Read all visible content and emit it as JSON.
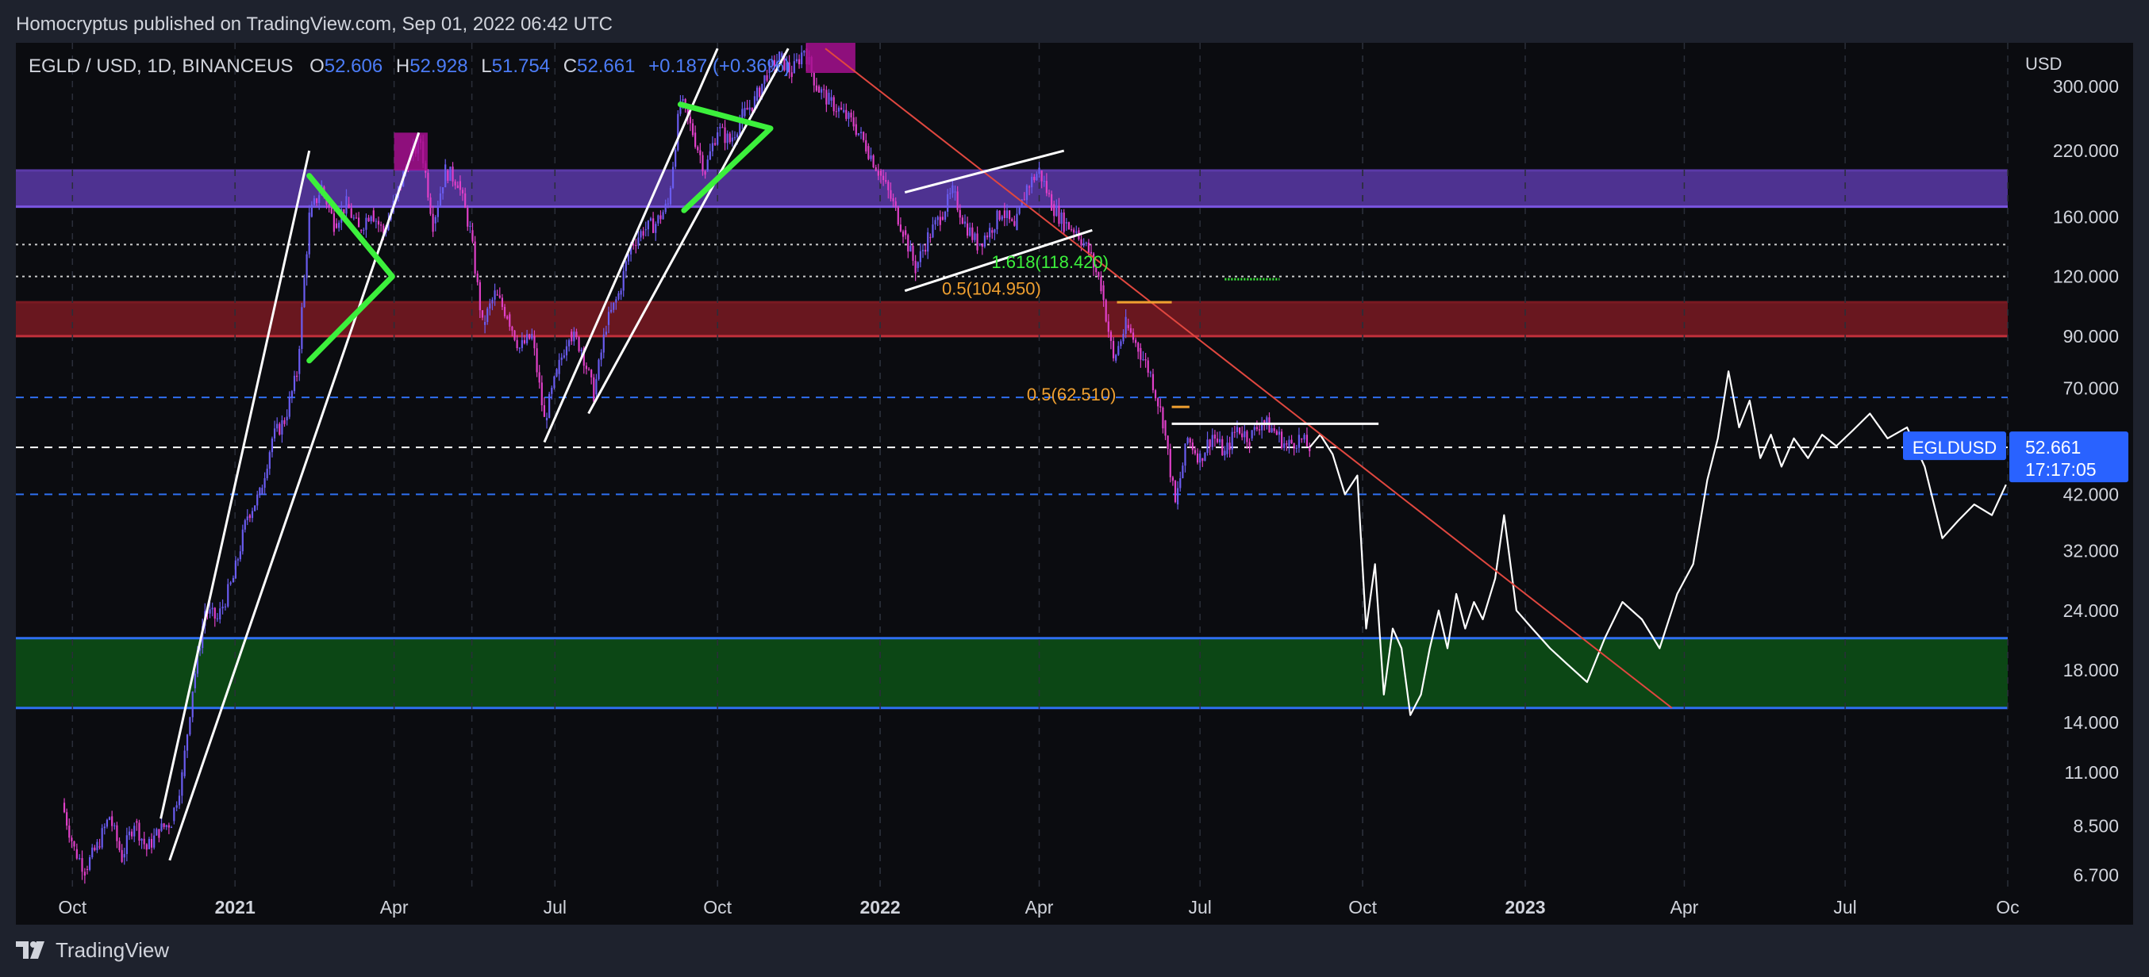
{
  "header": {
    "publisher_line": "Homocryptus published on TradingView.com, Sep 01, 2022 06:42 UTC"
  },
  "legend": {
    "symbol": "EGLD / USD, 1D, BINANCEUS",
    "o_label": "O",
    "o_value": "52.606",
    "h_label": "H",
    "h_value": "52.928",
    "l_label": "L",
    "l_value": "51.754",
    "c_label": "C",
    "c_value": "52.661",
    "change": "+0.187 (+0.36%)"
  },
  "footer": {
    "brand": "TradingView",
    "logo_icon": "tradingview-logo-icon"
  },
  "colors": {
    "background": "#0b0c10",
    "frame": "#1e222d",
    "candle_up": "#6a5cf0",
    "candle_down": "#e040c8",
    "purple_zone": "#5b3aa8",
    "red_zone": "#7a1a22",
    "green_zone": "#0d5216",
    "blue_line": "#2f6ff0",
    "triangle": "#3cf03c",
    "trend_red": "#e0473f",
    "price_badge": "#2962ff"
  },
  "chart_data": {
    "type": "line",
    "instrument": "EGLDUSD",
    "yscale": "log",
    "ylim": [
      6.2,
      370
    ],
    "axis_unit": "USD",
    "y_ticks": [
      "300.000",
      "220.000",
      "160.000",
      "120.000",
      "90.000",
      "70.000",
      "52.661",
      "42.000",
      "32.000",
      "24.000",
      "18.000",
      "14.000",
      "11.000",
      "8.500",
      "6.700"
    ],
    "x_ticks": [
      {
        "label": "Oct",
        "date": "2020-10-01",
        "bold": false
      },
      {
        "label": "2021",
        "date": "2021-01-01",
        "bold": true
      },
      {
        "label": "Apr",
        "date": "2021-04-01",
        "bold": false
      },
      {
        "label": "Jul",
        "date": "2021-07-01",
        "bold": false
      },
      {
        "label": "Oct",
        "date": "2021-10-01",
        "bold": false
      },
      {
        "label": "2022",
        "date": "2022-01-01",
        "bold": true
      },
      {
        "label": "Apr",
        "date": "2022-04-01",
        "bold": false
      },
      {
        "label": "Jul",
        "date": "2022-07-01",
        "bold": false
      },
      {
        "label": "Oct",
        "date": "2022-10-01",
        "bold": false
      },
      {
        "label": "2023",
        "date": "2023-01-01",
        "bold": true
      },
      {
        "label": "Apr",
        "date": "2023-04-01",
        "bold": false
      },
      {
        "label": "Jul",
        "date": "2023-07-01",
        "bold": false
      },
      {
        "label": "Oc",
        "date": "2023-10-01",
        "bold": false
      }
    ],
    "vertical_grid_dates": [
      "2020-10-01",
      "2021-05-15",
      "2022-01-01",
      "2022-10-01"
    ],
    "price_series": {
      "name": "EGLDUSD",
      "points": [
        [
          "2020-09-25",
          9.5
        ],
        [
          "2020-10-02",
          7.6
        ],
        [
          "2020-10-08",
          6.9
        ],
        [
          "2020-10-15",
          7.7
        ],
        [
          "2020-10-22",
          8.9
        ],
        [
          "2020-10-29",
          7.3
        ],
        [
          "2020-11-05",
          8.7
        ],
        [
          "2020-11-12",
          7.6
        ],
        [
          "2020-11-19",
          8.3
        ],
        [
          "2020-11-26",
          8.7
        ],
        [
          "2020-12-02",
          10.8
        ],
        [
          "2020-12-08",
          16.5
        ],
        [
          "2020-12-15",
          24.0
        ],
        [
          "2020-12-22",
          23.0
        ],
        [
          "2020-12-31",
          28.0
        ],
        [
          "2021-01-08",
          38.0
        ],
        [
          "2021-01-15",
          42.0
        ],
        [
          "2021-01-22",
          55.0
        ],
        [
          "2021-01-29",
          60.0
        ],
        [
          "2021-02-05",
          75.0
        ],
        [
          "2021-02-12",
          160.0
        ],
        [
          "2021-02-19",
          185.0
        ],
        [
          "2021-02-26",
          155.0
        ],
        [
          "2021-03-05",
          170.0
        ],
        [
          "2021-03-12",
          150.0
        ],
        [
          "2021-03-19",
          165.0
        ],
        [
          "2021-03-26",
          148.0
        ],
        [
          "2021-04-02",
          175.0
        ],
        [
          "2021-04-09",
          210.0
        ],
        [
          "2021-04-16",
          230.0
        ],
        [
          "2021-04-23",
          155.0
        ],
        [
          "2021-04-30",
          200.0
        ],
        [
          "2021-05-07",
          190.0
        ],
        [
          "2021-05-14",
          150.0
        ],
        [
          "2021-05-21",
          95.0
        ],
        [
          "2021-05-28",
          110.0
        ],
        [
          "2021-06-04",
          100.0
        ],
        [
          "2021-06-11",
          85.0
        ],
        [
          "2021-06-18",
          90.0
        ],
        [
          "2021-06-25",
          60.0
        ],
        [
          "2021-07-02",
          75.0
        ],
        [
          "2021-07-09",
          92.0
        ],
        [
          "2021-07-16",
          85.0
        ],
        [
          "2021-07-23",
          68.0
        ],
        [
          "2021-07-30",
          95.0
        ],
        [
          "2021-08-06",
          110.0
        ],
        [
          "2021-08-13",
          140.0
        ],
        [
          "2021-08-20",
          150.0
        ],
        [
          "2021-08-27",
          155.0
        ],
        [
          "2021-09-03",
          170.0
        ],
        [
          "2021-09-10",
          280.0
        ],
        [
          "2021-09-17",
          240.0
        ],
        [
          "2021-09-24",
          200.0
        ],
        [
          "2021-10-01",
          245.0
        ],
        [
          "2021-10-08",
          230.0
        ],
        [
          "2021-10-15",
          260.0
        ],
        [
          "2021-10-22",
          280.0
        ],
        [
          "2021-10-29",
          320.0
        ],
        [
          "2021-11-05",
          345.0
        ],
        [
          "2021-11-12",
          320.0
        ],
        [
          "2021-11-19",
          360.0
        ],
        [
          "2021-11-26",
          300.0
        ],
        [
          "2021-12-03",
          280.0
        ],
        [
          "2021-12-10",
          265.0
        ],
        [
          "2021-12-17",
          250.0
        ],
        [
          "2021-12-24",
          225.0
        ],
        [
          "2021-12-31",
          200.0
        ],
        [
          "2022-01-07",
          175.0
        ],
        [
          "2022-01-14",
          150.0
        ],
        [
          "2022-01-21",
          125.0
        ],
        [
          "2022-01-28",
          145.0
        ],
        [
          "2022-02-04",
          160.0
        ],
        [
          "2022-02-11",
          180.0
        ],
        [
          "2022-02-18",
          155.0
        ],
        [
          "2022-02-25",
          140.0
        ],
        [
          "2022-03-04",
          150.0
        ],
        [
          "2022-03-11",
          165.0
        ],
        [
          "2022-03-18",
          150.0
        ],
        [
          "2022-03-25",
          185.0
        ],
        [
          "2022-04-01",
          200.0
        ],
        [
          "2022-04-08",
          170.0
        ],
        [
          "2022-04-15",
          155.0
        ],
        [
          "2022-04-22",
          150.0
        ],
        [
          "2022-04-29",
          135.0
        ],
        [
          "2022-05-06",
          115.0
        ],
        [
          "2022-05-13",
          80.0
        ],
        [
          "2022-05-20",
          95.0
        ],
        [
          "2022-05-27",
          85.0
        ],
        [
          "2022-06-03",
          75.0
        ],
        [
          "2022-06-10",
          60.0
        ],
        [
          "2022-06-17",
          40.0
        ],
        [
          "2022-06-24",
          55.0
        ],
        [
          "2022-07-01",
          50.0
        ],
        [
          "2022-07-08",
          56.0
        ],
        [
          "2022-07-15",
          51.0
        ],
        [
          "2022-07-22",
          58.0
        ],
        [
          "2022-07-29",
          55.0
        ],
        [
          "2022-08-05",
          60.0
        ],
        [
          "2022-08-12",
          57.0
        ],
        [
          "2022-08-19",
          53.0
        ],
        [
          "2022-08-26",
          55.0
        ],
        [
          "2022-09-01",
          52.661
        ]
      ]
    },
    "projection_series": {
      "name": "projection",
      "points": [
        [
          "2022-09-01",
          52.661
        ],
        [
          "2022-09-07",
          56.0
        ],
        [
          "2022-09-14",
          51.0
        ],
        [
          "2022-09-21",
          42.0
        ],
        [
          "2022-09-28",
          46.0
        ],
        [
          "2022-10-03",
          22.0
        ],
        [
          "2022-10-08",
          30.0
        ],
        [
          "2022-10-13",
          16.0
        ],
        [
          "2022-10-18",
          22.0
        ],
        [
          "2022-10-23",
          20.0
        ],
        [
          "2022-10-28",
          14.5
        ],
        [
          "2022-11-03",
          16.0
        ],
        [
          "2022-11-08",
          20.0
        ],
        [
          "2022-11-13",
          24.0
        ],
        [
          "2022-11-18",
          20.0
        ],
        [
          "2022-11-23",
          26.0
        ],
        [
          "2022-11-28",
          22.0
        ],
        [
          "2022-12-03",
          25.0
        ],
        [
          "2022-12-08",
          23.0
        ],
        [
          "2022-12-15",
          28.0
        ],
        [
          "2022-12-20",
          38.0
        ],
        [
          "2022-12-27",
          24.0
        ],
        [
          "2023-01-05",
          22.0
        ],
        [
          "2023-01-15",
          20.0
        ],
        [
          "2023-01-25",
          18.5
        ],
        [
          "2023-02-05",
          17.0
        ],
        [
          "2023-02-15",
          21.0
        ],
        [
          "2023-02-25",
          25.0
        ],
        [
          "2023-03-08",
          23.0
        ],
        [
          "2023-03-18",
          20.0
        ],
        [
          "2023-03-28",
          26.0
        ],
        [
          "2023-04-06",
          30.0
        ],
        [
          "2023-04-14",
          45.0
        ],
        [
          "2023-04-20",
          55.0
        ],
        [
          "2023-04-26",
          76.0
        ],
        [
          "2023-05-02",
          58.0
        ],
        [
          "2023-05-08",
          66.0
        ],
        [
          "2023-05-14",
          50.0
        ],
        [
          "2023-05-20",
          56.0
        ],
        [
          "2023-05-26",
          48.0
        ],
        [
          "2023-06-02",
          55.0
        ],
        [
          "2023-06-10",
          50.0
        ],
        [
          "2023-06-18",
          56.0
        ],
        [
          "2023-06-26",
          53.0
        ],
        [
          "2023-07-05",
          57.0
        ],
        [
          "2023-07-15",
          62.0
        ],
        [
          "2023-07-25",
          55.0
        ],
        [
          "2023-08-05",
          58.0
        ],
        [
          "2023-08-15",
          48.0
        ],
        [
          "2023-08-25",
          34.0
        ],
        [
          "2023-09-03",
          37.0
        ],
        [
          "2023-09-12",
          40.0
        ],
        [
          "2023-09-22",
          38.0
        ],
        [
          "2023-09-30",
          44.0
        ]
      ]
    },
    "zones": [
      {
        "name": "purple-resistance",
        "low": 168.0,
        "high": 200.0,
        "color": "#5b3aa8"
      },
      {
        "name": "red-zone",
        "low": 90.0,
        "high": 106.0,
        "color": "#7a1a22"
      },
      {
        "name": "green-support",
        "low": 15.0,
        "high": 21.0,
        "color": "#0d5216"
      }
    ],
    "horizontal_levels": [
      {
        "name": "white-dotted",
        "y": 140.0,
        "style": "dotted",
        "color": "#cccccc"
      },
      {
        "name": "white-dotted",
        "y": 120.0,
        "style": "dotted",
        "color": "#cccccc"
      },
      {
        "name": "blue-dashed",
        "y": 67.0,
        "style": "dashed",
        "color": "#2f6ff0"
      },
      {
        "name": "white-dashed",
        "y": 52.661,
        "style": "dashed",
        "color": "#ffffff"
      },
      {
        "name": "blue-dashed",
        "y": 42.0,
        "style": "dashed",
        "color": "#2f6ff0"
      }
    ],
    "trendlines": [
      {
        "name": "downtrend-red",
        "from": [
          "2021-12-01",
          360.0
        ],
        "to": [
          "2023-03-25",
          15.0
        ],
        "color": "#e0473f"
      },
      {
        "name": "channel-1-left",
        "from": [
          "2020-11-20",
          8.8
        ],
        "to": [
          "2021-02-12",
          220.0
        ],
        "color": "#ffffff"
      },
      {
        "name": "channel-1-right",
        "from": [
          "2020-11-25",
          7.2
        ],
        "to": [
          "2021-04-15",
          240.0
        ],
        "color": "#ffffff"
      },
      {
        "name": "channel-2-left",
        "from": [
          "2021-06-25",
          54.0
        ],
        "to": [
          "2021-10-01",
          360.0
        ],
        "color": "#ffffff"
      },
      {
        "name": "channel-2-right",
        "from": [
          "2021-07-20",
          62.0
        ],
        "to": [
          "2021-11-10",
          360.0
        ],
        "color": "#ffffff"
      },
      {
        "name": "wedge-upper",
        "from": [
          "2022-01-15",
          180.0
        ],
        "to": [
          "2022-04-15",
          220.0
        ],
        "color": "#ffffff"
      },
      {
        "name": "wedge-lower",
        "from": [
          "2022-01-15",
          112.0
        ],
        "to": [
          "2022-05-01",
          150.0
        ],
        "color": "#ffffff"
      },
      {
        "name": "range-top",
        "from": [
          "2022-06-15",
          59.0
        ],
        "to": [
          "2022-10-10",
          59.0
        ],
        "color": "#ffffff"
      },
      {
        "name": "red-zone-marker",
        "from": [
          "2022-05-15",
          106.0
        ],
        "to": [
          "2022-06-15",
          106.0
        ],
        "color": "#f0a030"
      },
      {
        "name": "range-orange-marker",
        "from": [
          "2022-06-15",
          64.0
        ],
        "to": [
          "2022-06-25",
          64.0
        ],
        "color": "#f0a030"
      }
    ],
    "triangles": [
      {
        "name": "triangle-1",
        "points": [
          [
            "2021-02-12",
            195.0
          ],
          [
            "2021-03-31",
            120.0
          ],
          [
            "2021-02-12",
            80.0
          ]
        ],
        "color": "#3cf03c"
      },
      {
        "name": "triangle-2",
        "points": [
          [
            "2021-09-10",
            275.0
          ],
          [
            "2021-10-31",
            245.0
          ],
          [
            "2021-09-12",
            165.0
          ]
        ],
        "color": "#3cf03c"
      }
    ],
    "highlight_boxes": [
      {
        "name": "top-box-1",
        "from": "2021-04-01",
        "to": "2021-04-20",
        "low": 200.0,
        "high": 240.0,
        "color": "#a6108f"
      },
      {
        "name": "top-box-2",
        "from": "2021-11-20",
        "to": "2021-12-18",
        "low": 320.0,
        "high": 380.0,
        "color": "#a6108f"
      }
    ],
    "fib_labels": [
      {
        "text": "1.618(118.420)",
        "date": "2022-03-05",
        "y": 125.0,
        "color": "#3cf03c"
      },
      {
        "text": "0.5(104.950)",
        "date": "2022-02-05",
        "y": 110.0,
        "color": "#f0a030"
      },
      {
        "text": "0.5(62.510)",
        "date": "2022-03-25",
        "y": 66.0,
        "color": "#f0a030"
      }
    ],
    "green_target_segment": {
      "from": "2022-07-15",
      "to": "2022-08-15",
      "y": 118.4,
      "color": "#3cf03c"
    },
    "price_badge": {
      "label": "EGLDUSD",
      "value": "52.661",
      "countdown": "17:17:05"
    }
  }
}
